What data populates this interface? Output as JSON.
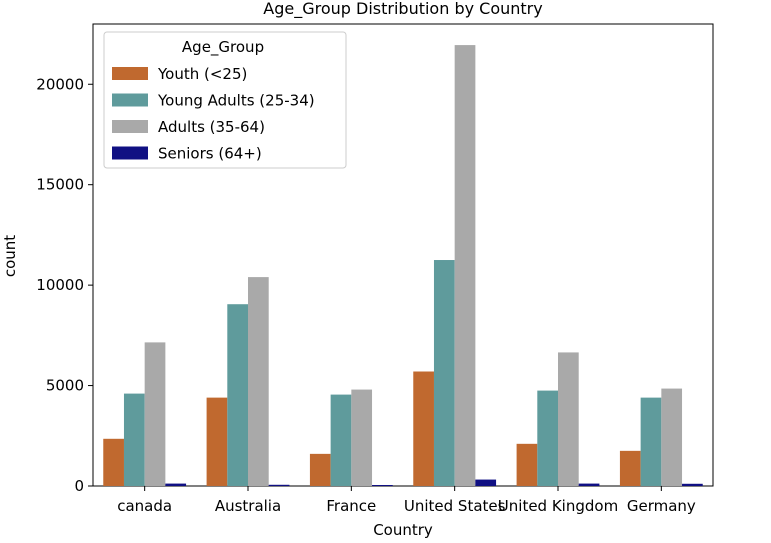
{
  "chart_data": {
    "type": "bar",
    "title": "Age_Group Distribution by Country",
    "xlabel": "Country",
    "ylabel": "count",
    "categories": [
      "canada",
      "Australia",
      "France",
      "United States",
      "United Kingdom",
      "Germany"
    ],
    "ylim": [
      0,
      23000
    ],
    "yticks": [
      0,
      5000,
      10000,
      15000,
      20000
    ],
    "grid": false,
    "legend": {
      "title": "Age_Group",
      "placement": "top-left"
    },
    "series": [
      {
        "name": "Youth (<25)",
        "color": "#c0692f",
        "values": [
          2350,
          4400,
          1600,
          5700,
          2100,
          1750
        ]
      },
      {
        "name": "Young Adults (25-34)",
        "color": "#5f9b9c",
        "values": [
          4600,
          9050,
          4550,
          11250,
          4750,
          4400
        ]
      },
      {
        "name": "Adults (35-64)",
        "color": "#a9a9a9",
        "values": [
          7150,
          10400,
          4800,
          21950,
          6650,
          4850
        ]
      },
      {
        "name": "Seniors (64+)",
        "color": "#101083",
        "values": [
          120,
          60,
          50,
          320,
          120,
          110
        ]
      }
    ]
  }
}
